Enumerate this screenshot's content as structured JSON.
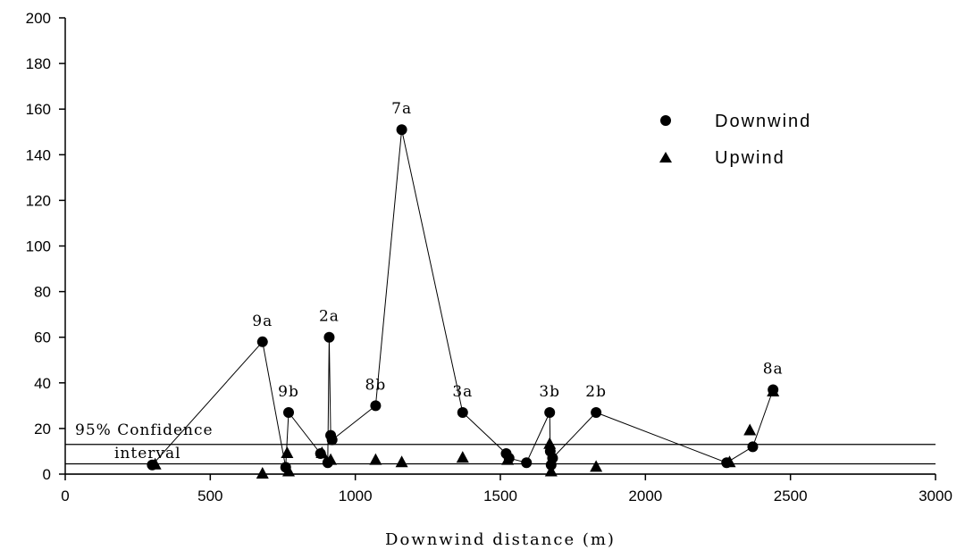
{
  "chart_data": {
    "type": "scatter",
    "xlabel": "Downwind distance (m)",
    "ylabel": "",
    "xlim": [
      0,
      3000
    ],
    "ylim": [
      0,
      200
    ],
    "xticks": [
      0,
      500,
      1000,
      1500,
      2000,
      2500,
      3000
    ],
    "yticks": [
      0,
      20,
      40,
      60,
      80,
      100,
      120,
      140,
      160,
      180,
      200
    ],
    "legend_position": "top-right",
    "series": [
      {
        "name": "Downwind",
        "marker": "circle",
        "connected": true,
        "points": [
          {
            "x": 300,
            "y": 4
          },
          {
            "x": 680,
            "y": 58
          },
          {
            "x": 760,
            "y": 3
          },
          {
            "x": 770,
            "y": 27
          },
          {
            "x": 880,
            "y": 9
          },
          {
            "x": 905,
            "y": 5
          },
          {
            "x": 910,
            "y": 60
          },
          {
            "x": 915,
            "y": 17
          },
          {
            "x": 920,
            "y": 15
          },
          {
            "x": 1070,
            "y": 30
          },
          {
            "x": 1160,
            "y": 151
          },
          {
            "x": 1370,
            "y": 27
          },
          {
            "x": 1520,
            "y": 9
          },
          {
            "x": 1530,
            "y": 7
          },
          {
            "x": 1590,
            "y": 5
          },
          {
            "x": 1670,
            "y": 27
          },
          {
            "x": 1672,
            "y": 10
          },
          {
            "x": 1675,
            "y": 4
          },
          {
            "x": 1680,
            "y": 7
          },
          {
            "x": 1830,
            "y": 27
          },
          {
            "x": 2280,
            "y": 5
          },
          {
            "x": 2370,
            "y": 12
          },
          {
            "x": 2440,
            "y": 37
          }
        ]
      },
      {
        "name": "Upwind",
        "marker": "triangle",
        "connected": false,
        "points": [
          {
            "x": 310,
            "y": 4
          },
          {
            "x": 680,
            "y": 0
          },
          {
            "x": 765,
            "y": 9
          },
          {
            "x": 770,
            "y": 1
          },
          {
            "x": 885,
            "y": 9
          },
          {
            "x": 915,
            "y": 6
          },
          {
            "x": 1070,
            "y": 6
          },
          {
            "x": 1160,
            "y": 5
          },
          {
            "x": 1370,
            "y": 7
          },
          {
            "x": 1525,
            "y": 6
          },
          {
            "x": 1670,
            "y": 13
          },
          {
            "x": 1675,
            "y": 1
          },
          {
            "x": 1830,
            "y": 3
          },
          {
            "x": 2290,
            "y": 5
          },
          {
            "x": 2360,
            "y": 19
          },
          {
            "x": 2440,
            "y": 36
          }
        ]
      }
    ],
    "annotations": [
      {
        "text": "9a",
        "x": 680,
        "y": 58
      },
      {
        "text": "9b",
        "x": 770,
        "y": 27
      },
      {
        "text": "2a",
        "x": 910,
        "y": 60
      },
      {
        "text": "8b",
        "x": 1070,
        "y": 30
      },
      {
        "text": "7a",
        "x": 1160,
        "y": 151
      },
      {
        "text": "3a",
        "x": 1370,
        "y": 27
      },
      {
        "text": "3b",
        "x": 1670,
        "y": 27
      },
      {
        "text": "2b",
        "x": 1830,
        "y": 27
      },
      {
        "text": "8a",
        "x": 2440,
        "y": 37
      }
    ],
    "reference_lines": [
      {
        "label": "",
        "y": 13
      },
      {
        "label": "",
        "y": 4.5
      },
      {
        "label": "",
        "y": 0
      }
    ],
    "confidence_label_1": "95% Confidence",
    "confidence_label_2": "interval"
  }
}
